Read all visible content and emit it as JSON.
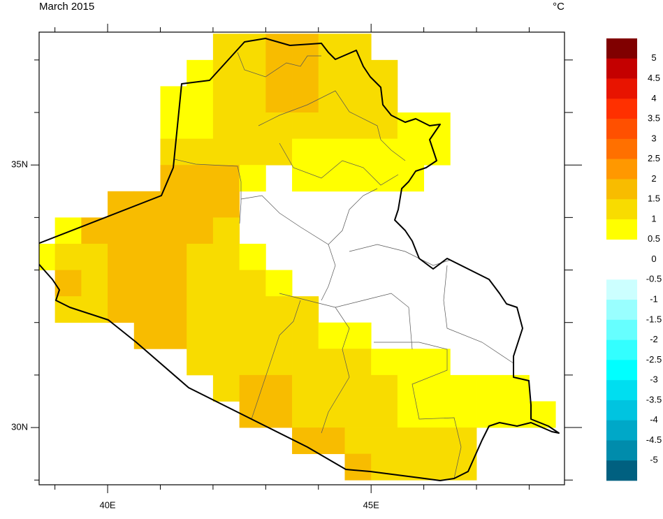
{
  "chart_data": {
    "type": "grid-map",
    "title": "March 2015",
    "unit": "°C",
    "xlim": [
      38.7,
      48.67
    ],
    "ylim": [
      28.91,
      37.53
    ],
    "xticks": [
      {
        "value": 40,
        "label": "40E"
      },
      {
        "value": 45,
        "label": "45E"
      }
    ],
    "yticks": [
      {
        "value": 30,
        "label": "30N"
      },
      {
        "value": 35,
        "label": "35N"
      }
    ],
    "xticks_minor": [
      39,
      41,
      42,
      43,
      44,
      46,
      47,
      48
    ],
    "yticks_minor": [
      29,
      31,
      32,
      33,
      34,
      36,
      37
    ],
    "cell_size": 0.5,
    "rows": [
      {
        "lat": 37,
        "lon0": 42,
        "values": [
          1.25,
          1.25,
          1.75,
          1.75,
          1.25,
          1.25
        ]
      },
      {
        "lat": 36.5,
        "lon0": 41.5,
        "values": [
          0.75,
          1.25,
          1.25,
          1.75,
          1.75,
          1.25,
          1.25,
          1.25
        ]
      },
      {
        "lat": 36,
        "lon0": 41,
        "values": [
          0.75,
          0.75,
          1.25,
          1.25,
          1.75,
          1.75,
          1.25,
          1.25,
          1.25
        ]
      },
      {
        "lat": 35.5,
        "lon0": 41,
        "values": [
          0.75,
          0.75,
          1.25,
          1.25,
          1.25,
          1.25,
          1.25,
          1.25,
          1.25,
          0.75,
          0.75
        ]
      },
      {
        "lat": 35,
        "lon0": 41,
        "values": [
          1.25,
          1.25,
          1.25,
          1.25,
          1.25,
          0.75,
          0.75,
          0.75,
          0.75,
          0.75,
          0.75
        ]
      },
      {
        "lat": 34.5,
        "lon0": 41,
        "values": [
          1.75,
          1.75,
          1.75,
          0.75,
          null,
          0.75,
          0.75,
          0.75,
          0.75,
          0.75
        ]
      },
      {
        "lat": 34,
        "lon0": 40,
        "values": [
          1.75,
          1.75,
          1.75,
          1.75,
          1.75
        ]
      },
      {
        "lat": 33.5,
        "lon0": 39,
        "values": [
          0.75,
          1.75,
          1.75,
          1.75,
          1.75,
          1.75,
          1.25
        ]
      },
      {
        "lat": 33,
        "lon0": 38.5,
        "values": [
          0.75,
          1.25,
          1.25,
          1.75,
          1.75,
          1.75,
          1.25,
          1.25,
          0.75
        ]
      },
      {
        "lat": 32.5,
        "lon0": 39,
        "values": [
          1.75,
          1.25,
          1.75,
          1.75,
          1.75,
          1.25,
          1.25,
          1.25,
          0.75
        ]
      },
      {
        "lat": 32,
        "lon0": 39,
        "values": [
          1.25,
          1.25,
          1.75,
          1.75,
          1.75,
          1.25,
          1.25,
          1.25,
          1.25,
          1.25
        ]
      },
      {
        "lat": 31.5,
        "lon0": 40.5,
        "values": [
          1.75,
          1.75,
          1.25,
          1.25,
          1.25,
          1.25,
          1.25,
          0.75,
          0.75
        ]
      },
      {
        "lat": 31,
        "lon0": 41.5,
        "values": [
          1.25,
          1.25,
          1.25,
          1.25,
          1.25,
          1.25,
          1.25,
          0.75,
          0.75,
          0.75
        ]
      },
      {
        "lat": 30.5,
        "lon0": 42,
        "values": [
          1.25,
          1.75,
          1.75,
          1.25,
          1.25,
          1.25,
          1.25,
          0.75,
          0.75,
          0.75,
          0.75,
          0.75
        ]
      },
      {
        "lat": 30,
        "lon0": 42.5,
        "values": [
          1.75,
          1.75,
          1.25,
          1.25,
          1.25,
          1.25,
          0.75,
          0.75,
          0.75,
          0.75,
          0.75,
          0.75
        ]
      },
      {
        "lat": 29.5,
        "lon0": 43.5,
        "values": [
          1.75,
          1.75,
          1.25,
          1.25,
          1.25,
          1.25,
          1.25
        ]
      },
      {
        "lat": 29,
        "lon0": 44.5,
        "values": [
          1.75,
          1.25,
          1.25,
          1.25,
          1.25
        ]
      }
    ],
    "colorbar": {
      "ticks": [
        5,
        4.5,
        4,
        3.5,
        3,
        2.5,
        2,
        1.5,
        1,
        0.5,
        0,
        -0.5,
        -1,
        -1.5,
        -2,
        -2.5,
        -3,
        -3.5,
        -4,
        -4.5,
        -5
      ],
      "colors": [
        "#800000",
        "#c40000",
        "#e81400",
        "#ff3000",
        "#ff5000",
        "#ff7000",
        "#ff9800",
        "#f8bc00",
        "#f8dc00",
        "#ffff00",
        "#ffffff",
        "#ffffff",
        "#ccffff",
        "#99ffff",
        "#66ffff",
        "#33ffff",
        "#00ffff",
        "#00def0",
        "#00c4e0",
        "#00a8c8",
        "#008cac",
        "#006080"
      ]
    }
  }
}
